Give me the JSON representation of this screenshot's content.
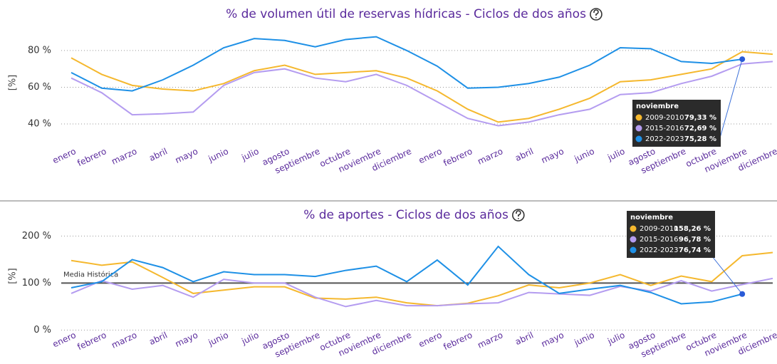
{
  "chart_data": [
    {
      "type": "line",
      "title": "% de volumen útil de reservas hídricas - Ciclos de dos años",
      "y_label": "[%]",
      "categories": [
        "enero",
        "febrero",
        "marzo",
        "abril",
        "mayo",
        "junio",
        "julio",
        "agosto",
        "septiembre",
        "octubre",
        "noviembre",
        "diciembre",
        "enero",
        "febrero",
        "marzo",
        "abril",
        "mayo",
        "junio",
        "julio",
        "agosto",
        "septiembre",
        "octubre",
        "noviembre",
        "diciembre"
      ],
      "ylim": [
        33,
        92
      ],
      "yticks": [
        {
          "value": 40,
          "label": "40 %"
        },
        {
          "value": 60,
          "label": "60 %"
        },
        {
          "value": 80,
          "label": "80 %"
        }
      ],
      "grid": true,
      "tooltip": {
        "title": "noviembre"
      },
      "series": [
        {
          "name": "2009-2010",
          "color": "#f5b82e",
          "tooltip_label": "79,33 %",
          "values": [
            76,
            67,
            61,
            59,
            58,
            62,
            69,
            72,
            67,
            68,
            69,
            65,
            58,
            48,
            41,
            43,
            48,
            54,
            63,
            64,
            67,
            70,
            79.33,
            78
          ]
        },
        {
          "name": "2015-2016",
          "color": "#b49cf0",
          "tooltip_label": "72,69 %",
          "values": [
            65,
            57,
            45,
            45.5,
            46.5,
            61,
            68,
            70,
            65,
            63,
            67,
            61,
            52,
            43,
            39,
            41,
            45,
            48,
            56,
            57,
            62,
            66,
            72.69,
            74
          ]
        },
        {
          "name": "2022-2023",
          "color": "#1e90e6",
          "tooltip_label": "75,28 %",
          "values": [
            68,
            59.5,
            58,
            64,
            72,
            81.5,
            86.5,
            85.5,
            82,
            86,
            87.5,
            80,
            71.5,
            59.5,
            60,
            62,
            65.5,
            72,
            81.5,
            81,
            74,
            73,
            75.28,
            null
          ]
        }
      ]
    },
    {
      "type": "line",
      "title": "% de aportes - Ciclos de dos años",
      "y_label": "[%]",
      "categories": [
        "enero",
        "febrero",
        "marzo",
        "abril",
        "mayo",
        "junio",
        "julio",
        "agosto",
        "septiembre",
        "octubre",
        "noviembre",
        "diciembre",
        "enero",
        "febrero",
        "marzo",
        "abril",
        "mayo",
        "junio",
        "julio",
        "agosto",
        "septiembre",
        "octubre",
        "noviembre",
        "diciembre"
      ],
      "ylim": [
        -10,
        240
      ],
      "yticks": [
        {
          "value": 0,
          "label": "0 %"
        },
        {
          "value": 100,
          "label": "100 %"
        },
        {
          "value": 200,
          "label": "200 %"
        }
      ],
      "grid": true,
      "reference": {
        "value": 100,
        "label": "Media Histórica"
      },
      "tooltip": {
        "title": "noviembre"
      },
      "series": [
        {
          "name": "2009-2010",
          "color": "#f5b82e",
          "tooltip_label": "158,26 %",
          "values": [
            148,
            138,
            145,
            112,
            78,
            85,
            92,
            92,
            68,
            66,
            70,
            58,
            52,
            57,
            73,
            96,
            90,
            100,
            118,
            95,
            115,
            103,
            158.26,
            165
          ]
        },
        {
          "name": "2015-2016",
          "color": "#b49cf0",
          "tooltip_label": "96,78 %",
          "values": [
            78,
            105,
            87,
            95,
            70,
            108,
            100,
            100,
            70,
            50,
            63,
            52,
            52,
            56,
            58,
            80,
            77,
            74,
            93,
            83,
            105,
            83,
            96.78,
            110
          ]
        },
        {
          "name": "2022-2023",
          "color": "#1e90e6",
          "tooltip_label": "76,74 %",
          "values": [
            90,
            103,
            150,
            133,
            103,
            124,
            118,
            118,
            114,
            127,
            136,
            103,
            149,
            96,
            178,
            118,
            78,
            87,
            95,
            80,
            56,
            60,
            76.74,
            null
          ]
        }
      ]
    }
  ]
}
